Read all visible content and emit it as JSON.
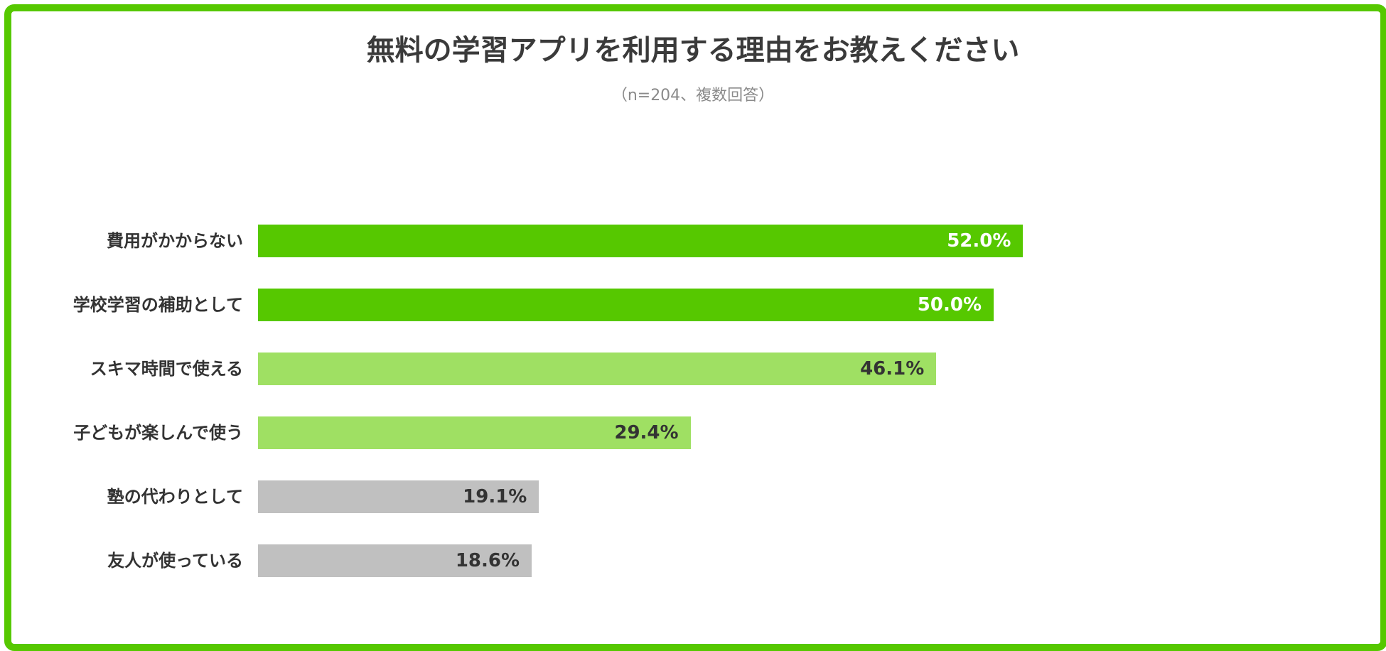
{
  "chart_data": {
    "type": "bar",
    "orientation": "horizontal",
    "title": "無料の学習アプリを利用する理由をお教えください",
    "subtitle": "（n=204、複数回答）",
    "categories": [
      "費用がかからない",
      "学校学習の補助として",
      "スキマ時間で使える",
      "子どもが楽しんで使う",
      "塾の代わりとして",
      "友人が使っている"
    ],
    "values": [
      52.0,
      50.0,
      46.1,
      29.4,
      19.1,
      18.6
    ],
    "value_labels": [
      "52.0%",
      "50.0%",
      "46.1%",
      "29.4%",
      "19.1%",
      "18.6%"
    ],
    "bar_colors": [
      "#56c800",
      "#56c800",
      "#9fe063",
      "#9fe063",
      "#c0c0c0",
      "#c0c0c0"
    ],
    "label_colors": [
      "#ffffff",
      "#ffffff",
      "#333333",
      "#333333",
      "#333333",
      "#333333"
    ],
    "frame_color": "#56c800",
    "grid": false,
    "legend": "none"
  }
}
